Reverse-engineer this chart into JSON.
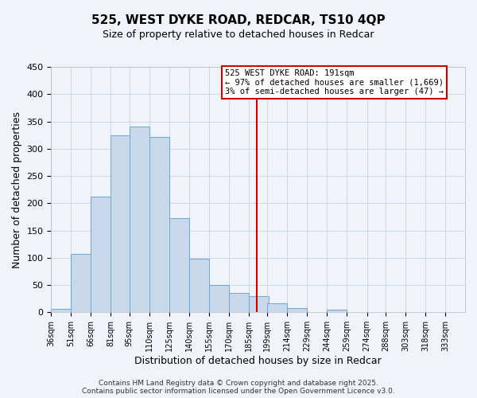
{
  "title": "525, WEST DYKE ROAD, REDCAR, TS10 4QP",
  "subtitle": "Size of property relative to detached houses in Redcar",
  "xlabel": "Distribution of detached houses by size in Redcar",
  "ylabel": "Number of detached properties",
  "bar_left_edges": [
    36,
    51,
    66,
    81,
    95,
    110,
    125,
    140,
    155,
    170,
    185,
    199,
    214,
    229,
    244,
    259,
    274,
    288,
    303,
    318
  ],
  "bar_heights": [
    6,
    107,
    212,
    325,
    340,
    321,
    172,
    98,
    50,
    36,
    30,
    17,
    8,
    0,
    5,
    0,
    0,
    0,
    0,
    0
  ],
  "bar_color": "#c8d8ea",
  "bar_edgecolor": "#6aaad4",
  "vline_x": 191,
  "vline_color": "#cc0000",
  "ylim": [
    0,
    450
  ],
  "yticks": [
    0,
    50,
    100,
    150,
    200,
    250,
    300,
    350,
    400,
    450
  ],
  "xtick_labels": [
    "36sqm",
    "51sqm",
    "66sqm",
    "81sqm",
    "95sqm",
    "110sqm",
    "125sqm",
    "140sqm",
    "155sqm",
    "170sqm",
    "185sqm",
    "199sqm",
    "214sqm",
    "229sqm",
    "244sqm",
    "259sqm",
    "274sqm",
    "288sqm",
    "303sqm",
    "318sqm",
    "333sqm"
  ],
  "xtick_positions": [
    36,
    51,
    66,
    81,
    95,
    110,
    125,
    140,
    155,
    170,
    185,
    199,
    214,
    229,
    244,
    259,
    274,
    288,
    303,
    318,
    333
  ],
  "annotation_title": "525 WEST DYKE ROAD: 191sqm",
  "annotation_line1": "← 97% of detached houses are smaller (1,669)",
  "annotation_line2": "3% of semi-detached houses are larger (47) →",
  "grid_color": "#d0d8e8",
  "bg_color": "#f0f4fa",
  "xlim_min": 36,
  "xlim_max": 348,
  "footnote1": "Contains HM Land Registry data © Crown copyright and database right 2025.",
  "footnote2": "Contains public sector information licensed under the Open Government Licence v3.0."
}
